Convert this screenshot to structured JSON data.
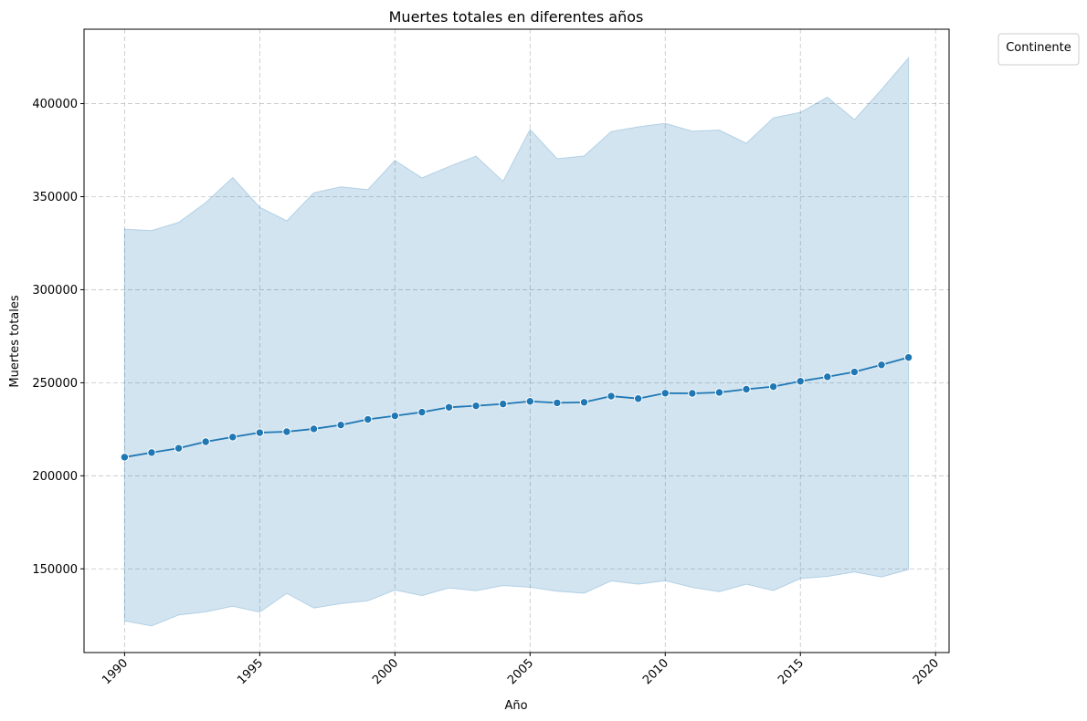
{
  "chart_data": {
    "type": "line",
    "title": "Muertes totales  en diferentes años",
    "xlabel": "Año",
    "ylabel": "Muertes totales",
    "xlim": [
      1988.5,
      2020.5
    ],
    "ylim": [
      105000,
      440000
    ],
    "x_ticks": [
      1990,
      1995,
      2000,
      2005,
      2010,
      2015,
      2020
    ],
    "y_ticks": [
      150000,
      200000,
      250000,
      300000,
      350000,
      400000
    ],
    "x_tick_labels": [
      "1990",
      "1995",
      "2000",
      "2005",
      "2010",
      "2015",
      "2020"
    ],
    "y_tick_labels": [
      "150000",
      "200000",
      "250000",
      "300000",
      "350000",
      "400000"
    ],
    "grid": true,
    "legend": {
      "title": "Continente",
      "placement": "outside-top-right"
    },
    "colors": {
      "line": "#1f77b4",
      "band": "#1f77b4",
      "grid": "#b0b0b0"
    },
    "series": [
      {
        "name": "Muertes totales",
        "x": [
          1990,
          1991,
          1992,
          1993,
          1994,
          1995,
          1996,
          1997,
          1998,
          1999,
          2000,
          2001,
          2002,
          2003,
          2004,
          2005,
          2006,
          2007,
          2008,
          2009,
          2010,
          2011,
          2012,
          2013,
          2014,
          2015,
          2016,
          2017,
          2018,
          2019
        ],
        "values": [
          210000,
          212500,
          214800,
          218300,
          220800,
          223200,
          223700,
          225200,
          227300,
          230300,
          232200,
          234200,
          236800,
          237600,
          238600,
          240000,
          239200,
          239500,
          242800,
          241500,
          244400,
          244300,
          244800,
          246500,
          247900,
          250800,
          253200,
          255800,
          259600,
          263600
        ],
        "ci_lower": [
          122000,
          119300,
          125200,
          126800,
          129900,
          126700,
          136800,
          128900,
          131300,
          132800,
          138600,
          135600,
          139700,
          138200,
          141000,
          140100,
          137900,
          136900,
          143500,
          141700,
          143600,
          140000,
          137700,
          141700,
          138300,
          144700,
          145900,
          148300,
          145600,
          149600
        ],
        "ci_upper": [
          332500,
          331800,
          336200,
          346800,
          360300,
          344300,
          337000,
          352100,
          355300,
          353800,
          369500,
          360100,
          366200,
          371800,
          358300,
          386200,
          370400,
          371900,
          385000,
          387500,
          389400,
          385200,
          385800,
          378700,
          392400,
          395300,
          403500,
          391400,
          407600,
          424600
        ]
      }
    ]
  }
}
